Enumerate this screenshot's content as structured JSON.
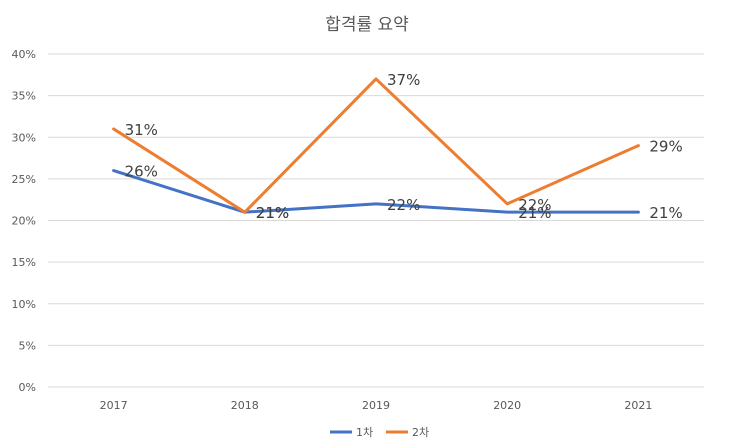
{
  "chart_data": {
    "type": "line",
    "title": "합격률 요약",
    "categories": [
      "2017",
      "2018",
      "2019",
      "2020",
      "2021"
    ],
    "series": [
      {
        "name": "1차",
        "values": [
          26,
          21,
          22,
          21,
          21
        ],
        "labels": [
          "26%",
          "21%",
          "22%",
          "21%",
          "21%"
        ],
        "color": "#4472c4"
      },
      {
        "name": "2차",
        "values": [
          31,
          21,
          37,
          22,
          29
        ],
        "labels": [
          "31%",
          "21%",
          "37%",
          "22%",
          "29%"
        ],
        "color": "#ed7d31"
      }
    ],
    "y_ticks": [
      "0%",
      "5%",
      "10%",
      "15%",
      "20%",
      "25%",
      "30%",
      "35%",
      "40%"
    ],
    "ylim": [
      0,
      40
    ],
    "grid": true,
    "legend_position": "bottom"
  }
}
